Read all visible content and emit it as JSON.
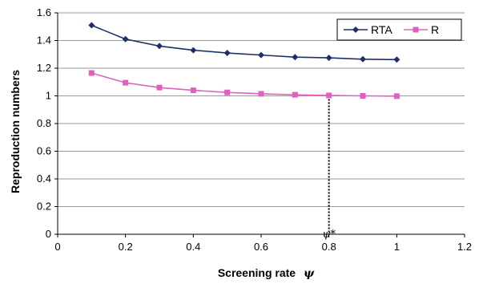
{
  "chart_data": {
    "type": "line",
    "title": "",
    "xlabel": "Screening rate",
    "xlabel_symbol": "ψ",
    "ylabel": "Reproduction numbers",
    "xlim": [
      0,
      1.2
    ],
    "ylim": [
      0,
      1.6
    ],
    "x_ticks": [
      "0",
      "0.2",
      "0.4",
      "0.6",
      "0.8",
      "1",
      "1.2"
    ],
    "y_ticks": [
      "0",
      "0.2",
      "0.4",
      "0.6",
      "0.8",
      "1",
      "1.2",
      "1.4",
      "1.6"
    ],
    "grid": "horizontal",
    "legend_position": "top-right",
    "x": [
      0.1,
      0.2,
      0.3,
      0.4,
      0.5,
      0.6,
      0.7,
      0.8,
      0.9,
      1.0
    ],
    "series": [
      {
        "name": "RTA",
        "color": "#1f2f6b",
        "marker": "diamond",
        "values": [
          1.51,
          1.41,
          1.36,
          1.33,
          1.31,
          1.295,
          1.28,
          1.275,
          1.265,
          1.262
        ]
      },
      {
        "name": "R",
        "color": "#e060c0",
        "marker": "square",
        "values": [
          1.165,
          1.095,
          1.06,
          1.04,
          1.025,
          1.015,
          1.008,
          1.003,
          1.0,
          0.998
        ]
      }
    ],
    "annotation": {
      "label": "ψ*",
      "x": 0.8,
      "y": 1.0,
      "style": "dotted vertical line"
    }
  }
}
